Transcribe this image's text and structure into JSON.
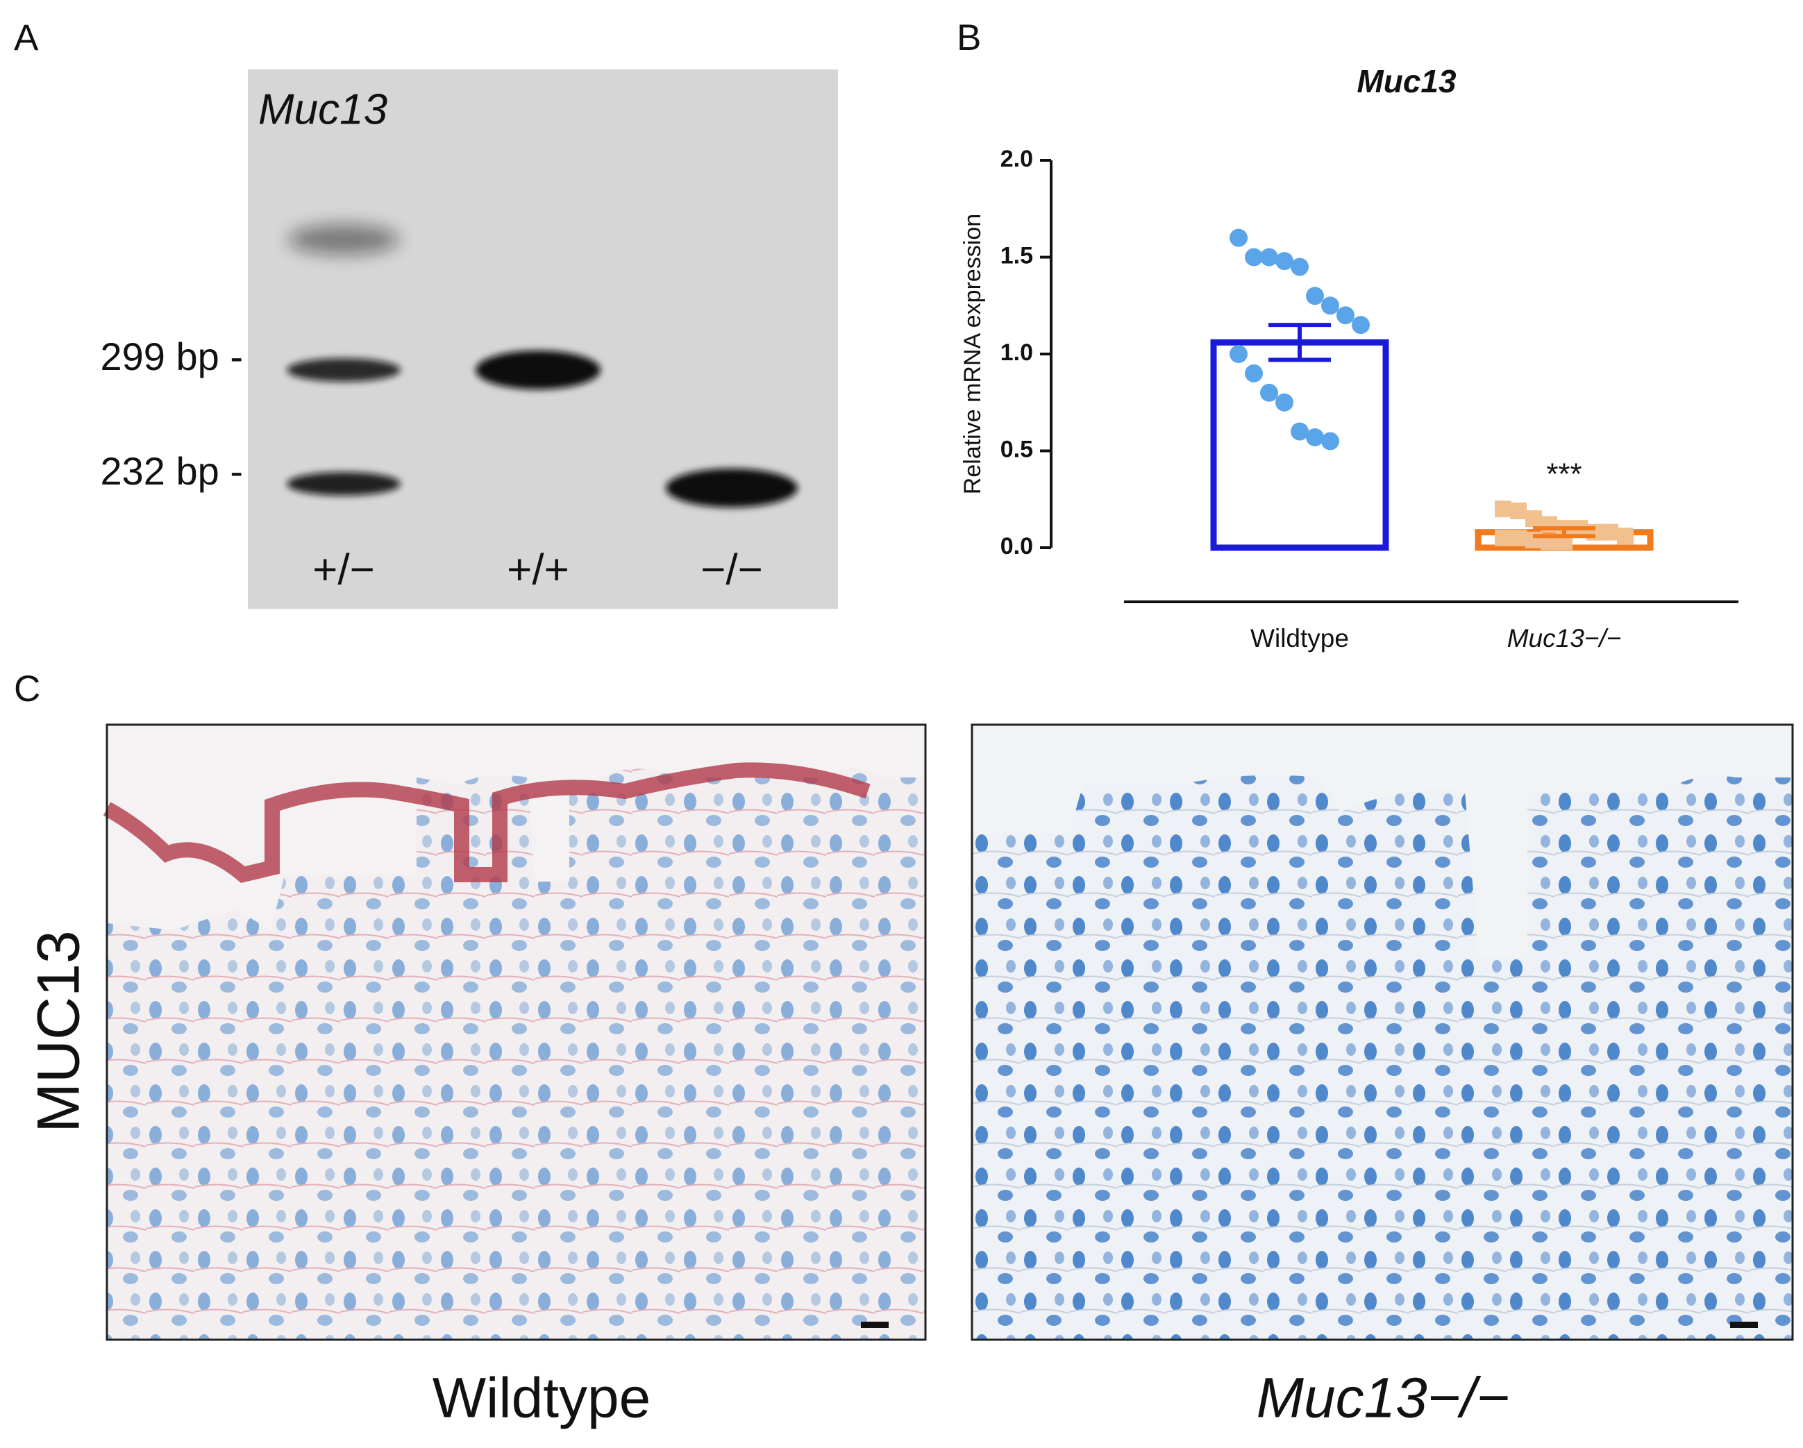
{
  "panels": {
    "a": {
      "label": "A",
      "gel_title": "Muc13",
      "band_labels": [
        "299 bp -",
        "232 bp -"
      ],
      "lane_labels": [
        "+/−",
        "+/+",
        "−/−"
      ]
    },
    "c": {
      "label": "C",
      "row_label": "MUC13",
      "image_labels": [
        "Wildtype",
        "Muc13−/−"
      ]
    }
  },
  "chart_data": {
    "type": "bar",
    "panel_label": "B",
    "title": "Muc13",
    "y_label": "Relative mRNA expression",
    "categories": [
      "Wildtype",
      "Muc13−/−"
    ],
    "values": [
      1.06,
      0.08
    ],
    "errors": [
      0.09,
      0.02
    ],
    "points": [
      [
        1.6,
        1.5,
        1.5,
        1.48,
        1.45,
        1.3,
        1.25,
        1.2,
        1.15,
        1.0,
        0.9,
        0.8,
        0.75,
        0.6,
        0.57,
        0.55
      ],
      [
        0.2,
        0.19,
        0.15,
        0.12,
        0.1,
        0.1,
        0.08,
        0.08,
        0.06,
        0.05,
        0.05,
        0.04,
        0.03,
        0.03
      ]
    ],
    "bar_colors": [
      "#1a1ad8",
      "#f07a1e"
    ],
    "point_colors": [
      "#5aa5ea",
      "#f2c08e"
    ],
    "annotation": "***",
    "ylim": [
      0,
      2
    ],
    "yticks": [
      {
        "value": 0,
        "label": "0.0"
      },
      {
        "value": 0.5,
        "label": "0.5"
      },
      {
        "value": 1,
        "label": "1.0"
      },
      {
        "value": 1.5,
        "label": "1.5"
      },
      {
        "value": 2,
        "label": "2.0"
      }
    ]
  }
}
